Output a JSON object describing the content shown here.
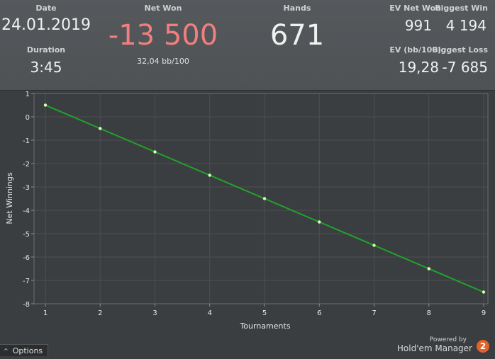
{
  "header": {
    "date_label": "Date",
    "date_value": "24.01.2019",
    "duration_label": "Duration",
    "duration_value": "3:45",
    "net_won_label": "Net Won",
    "net_won_value": "-13 500",
    "bb100_value": "32,04 bb/100",
    "hands_label": "Hands",
    "hands_value": "671",
    "ev_net_won_label": "EV Net Won",
    "ev_net_won_value": "991",
    "biggest_win_label": "Biggest Win",
    "biggest_win_value": "4 194",
    "ev_bb100_label": "EV (bb/100)",
    "ev_bb100_value": "19,28",
    "biggest_loss_label": "Biggest Loss",
    "biggest_loss_value": "-7 685"
  },
  "colors": {
    "negative": "#f07f7f",
    "line": "#1fa52a",
    "point": "#d9ffb0"
  },
  "chart_data": {
    "type": "line",
    "xlabel": "Tournaments",
    "ylabel": "Net Winnings",
    "x": [
      1,
      2,
      3,
      4,
      5,
      6,
      7,
      8,
      9
    ],
    "series": [
      {
        "values": [
          0.5,
          -0.5,
          -1.5,
          -2.5,
          -3.5,
          -4.5,
          -5.5,
          -6.5,
          -7.5
        ]
      }
    ],
    "xlim": [
      1,
      9
    ],
    "ylim": [
      -8,
      1
    ],
    "xticks": [
      "1",
      "2",
      "3",
      "4",
      "5",
      "6",
      "7",
      "8",
      "9"
    ],
    "yticks": [
      "1",
      "0",
      "-1",
      "-2",
      "-3",
      "-4",
      "-5",
      "-6",
      "-7",
      "-8"
    ],
    "grid": true
  },
  "footer": {
    "options_label": "Options",
    "options_icon": "chevron-up-icon",
    "powered_by": "Powered by",
    "brand": "Hold'em Manager",
    "brand_logo": "2"
  }
}
